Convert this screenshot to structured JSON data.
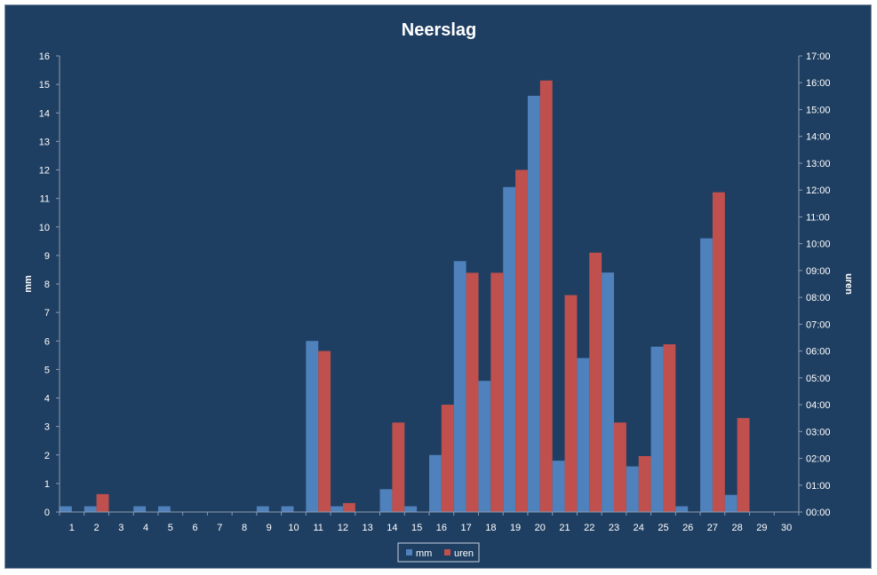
{
  "chart_data": {
    "type": "bar",
    "title": "Neerslag",
    "ylabel": "mm",
    "y2label": "uren",
    "ylim": [
      0,
      16
    ],
    "y2lim_minutes": [
      0,
      1020
    ],
    "yticks": [
      "0",
      "1",
      "2",
      "3",
      "4",
      "5",
      "6",
      "7",
      "8",
      "9",
      "10",
      "11",
      "12",
      "13",
      "14",
      "15",
      "16"
    ],
    "y2ticks": [
      "00:00",
      "01:00",
      "02:00",
      "03:00",
      "04:00",
      "05:00",
      "06:00",
      "07:00",
      "08:00",
      "09:00",
      "10:00",
      "11:00",
      "12:00",
      "13:00",
      "14:00",
      "15:00",
      "16:00",
      "17:00"
    ],
    "categories": [
      "1",
      "2",
      "3",
      "4",
      "5",
      "6",
      "7",
      "8",
      "9",
      "10",
      "11",
      "12",
      "13",
      "14",
      "15",
      "16",
      "17",
      "18",
      "19",
      "20",
      "21",
      "22",
      "23",
      "24",
      "25",
      "26",
      "27",
      "28",
      "29",
      "30"
    ],
    "series": [
      {
        "name": "mm",
        "axis": "left",
        "color": "#4f81bd",
        "values": [
          0.2,
          0.2,
          0,
          0.2,
          0.2,
          0,
          0,
          0,
          0.2,
          0.2,
          6.0,
          0.2,
          0,
          0.8,
          0.2,
          2.0,
          8.8,
          4.6,
          11.4,
          14.6,
          1.8,
          5.4,
          8.4,
          1.6,
          5.8,
          0.2,
          9.6,
          0.6,
          0,
          0
        ]
      },
      {
        "name": "uren",
        "axis": "right",
        "color": "#c0504d",
        "values": [
          "00:00",
          "00:40",
          "00:00",
          "00:00",
          "00:00",
          "00:00",
          "00:00",
          "00:00",
          "00:00",
          "00:00",
          "06:00",
          "00:20",
          "00:00",
          "03:20",
          "00:00",
          "04:00",
          "08:55",
          "08:55",
          "12:45",
          "16:05",
          "08:05",
          "09:40",
          "03:20",
          "02:05",
          "06:15",
          "00:00",
          "11:55",
          "03:30",
          "00:00",
          "00:00"
        ]
      }
    ],
    "legend": {
      "position": "bottom-center"
    },
    "grid": false
  }
}
